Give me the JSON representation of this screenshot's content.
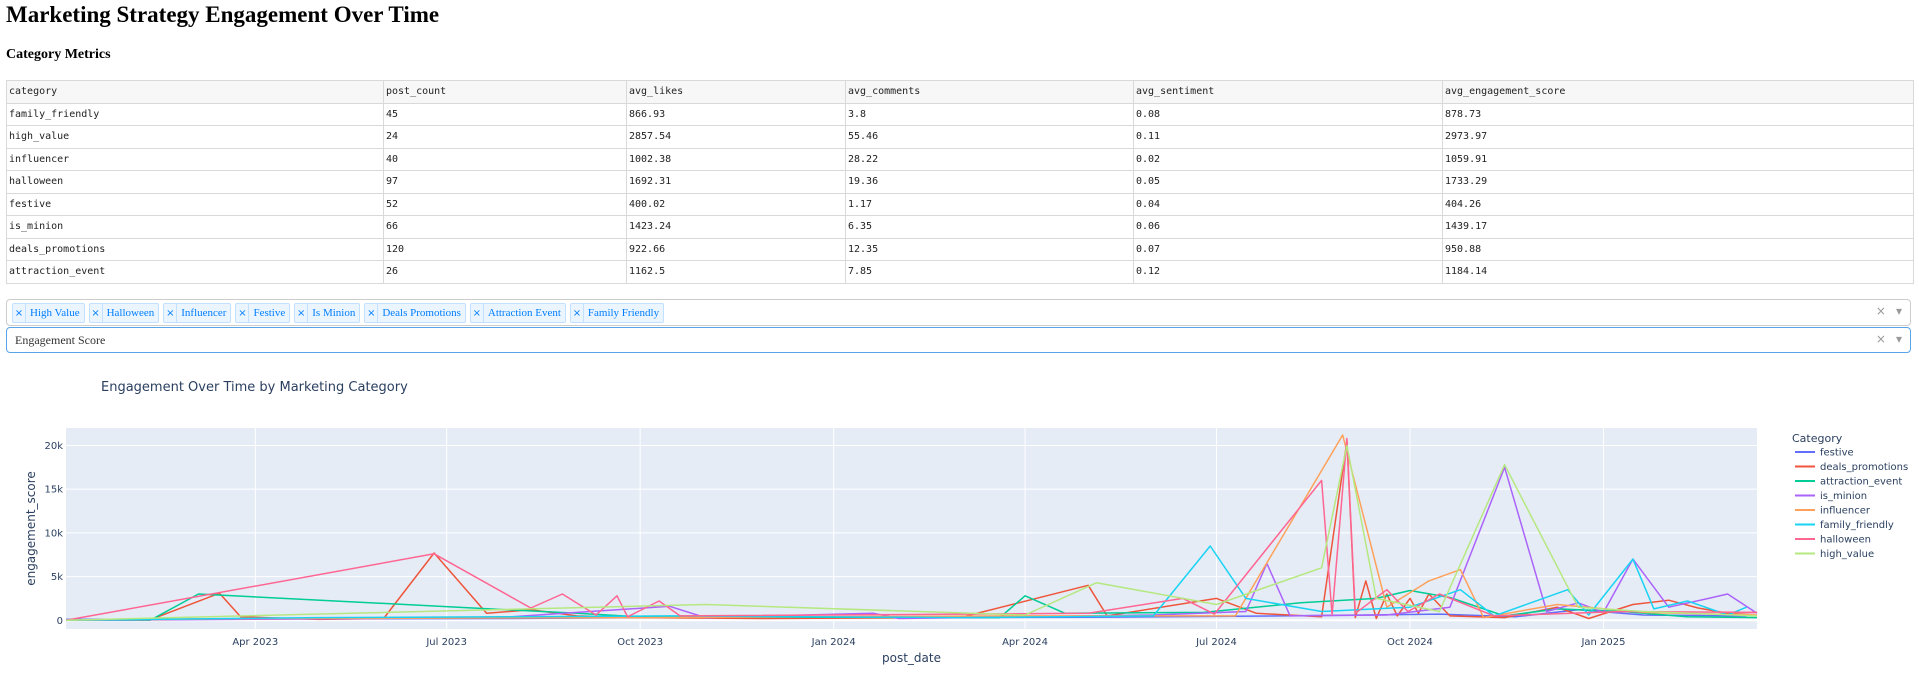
{
  "page": {
    "title": "Marketing Strategy Engagement Over Time",
    "section_title": "Category Metrics"
  },
  "table": {
    "columns": [
      "category",
      "post_count",
      "avg_likes",
      "avg_comments",
      "avg_sentiment",
      "avg_engagement_score"
    ],
    "rows": [
      [
        "family_friendly",
        "45",
        "866.93",
        "3.8",
        "0.08",
        "878.73"
      ],
      [
        "high_value",
        "24",
        "2857.54",
        "55.46",
        "0.11",
        "2973.97"
      ],
      [
        "influencer",
        "40",
        "1002.38",
        "28.22",
        "0.02",
        "1059.91"
      ],
      [
        "halloween",
        "97",
        "1692.31",
        "19.36",
        "0.05",
        "1733.29"
      ],
      [
        "festive",
        "52",
        "400.02",
        "1.17",
        "0.04",
        "404.26"
      ],
      [
        "is_minion",
        "66",
        "1423.24",
        "6.35",
        "0.06",
        "1439.17"
      ],
      [
        "deals_promotions",
        "120",
        "922.66",
        "12.35",
        "0.07",
        "950.88"
      ],
      [
        "attraction_event",
        "26",
        "1162.5",
        "7.85",
        "0.12",
        "1184.14"
      ]
    ]
  },
  "filters": {
    "categories_selected": [
      "High Value",
      "Halloween",
      "Influencer",
      "Festive",
      "Is Minion",
      "Deals Promotions",
      "Attraction Event",
      "Family Friendly"
    ],
    "remove_glyph": "×",
    "clear_glyph": "×",
    "arrow_glyph": "▾",
    "metric_selected": "Engagement Score"
  },
  "chart_data": {
    "type": "line",
    "title": "Engagement Over Time by Marketing Category",
    "xlabel": "post_date",
    "ylabel": "engagement_score",
    "xlim": [
      "2023-01-01",
      "2025-03-15"
    ],
    "ylim": [
      -1000,
      22000
    ],
    "x_ticks": [
      {
        "date": "2023-04-01",
        "label": "Apr 2023"
      },
      {
        "date": "2023-07-01",
        "label": "Jul 2023"
      },
      {
        "date": "2023-10-01",
        "label": "Oct 2023"
      },
      {
        "date": "2024-01-01",
        "label": "Jan 2024"
      },
      {
        "date": "2024-04-01",
        "label": "Apr 2024"
      },
      {
        "date": "2024-07-01",
        "label": "Jul 2024"
      },
      {
        "date": "2024-10-01",
        "label": "Oct 2024"
      },
      {
        "date": "2025-01-01",
        "label": "Jan 2025"
      }
    ],
    "y_ticks": [
      {
        "value": 0,
        "label": "0"
      },
      {
        "value": 5000,
        "label": "5k"
      },
      {
        "value": 10000,
        "label": "10k"
      },
      {
        "value": 15000,
        "label": "15k"
      },
      {
        "value": 20000,
        "label": "20k"
      }
    ],
    "grid": true,
    "legend_title": "Category",
    "legend_position": "right",
    "plot_background": "#e5ecf6",
    "series": [
      {
        "name": "festive",
        "color": "#636efa",
        "points": [
          [
            "2023-01-01",
            100
          ],
          [
            "2023-04-15",
            150
          ],
          [
            "2023-08-01",
            200
          ],
          [
            "2023-11-20",
            400
          ],
          [
            "2024-02-10",
            300
          ],
          [
            "2024-05-01",
            350
          ],
          [
            "2024-08-01",
            500
          ],
          [
            "2024-10-15",
            700
          ],
          [
            "2024-11-20",
            400
          ],
          [
            "2024-12-20",
            1200
          ],
          [
            "2025-01-20",
            600
          ],
          [
            "2025-03-10",
            500
          ]
        ]
      },
      {
        "name": "deals_promotions",
        "color": "#ef553b",
        "points": [
          [
            "2023-01-01",
            0
          ],
          [
            "2023-02-10",
            50
          ],
          [
            "2023-03-15",
            3100
          ],
          [
            "2023-03-25",
            400
          ],
          [
            "2023-05-01",
            100
          ],
          [
            "2023-06-01",
            200
          ],
          [
            "2023-06-25",
            7700
          ],
          [
            "2023-07-20",
            800
          ],
          [
            "2023-08-10",
            1200
          ],
          [
            "2023-09-01",
            500
          ],
          [
            "2023-10-01",
            300
          ],
          [
            "2023-12-01",
            200
          ],
          [
            "2024-03-01",
            300
          ],
          [
            "2024-05-01",
            4000
          ],
          [
            "2024-05-10",
            500
          ],
          [
            "2024-07-01",
            2500
          ],
          [
            "2024-07-20",
            800
          ],
          [
            "2024-08-20",
            400
          ],
          [
            "2024-09-01",
            20500
          ],
          [
            "2024-09-05",
            300
          ],
          [
            "2024-09-10",
            4500
          ],
          [
            "2024-09-15",
            200
          ],
          [
            "2024-09-20",
            3000
          ],
          [
            "2024-09-25",
            500
          ],
          [
            "2024-10-01",
            2500
          ],
          [
            "2024-10-05",
            800
          ],
          [
            "2024-10-10",
            3000
          ],
          [
            "2024-10-20",
            500
          ],
          [
            "2024-11-15",
            300
          ],
          [
            "2024-12-10",
            1500
          ],
          [
            "2024-12-25",
            200
          ],
          [
            "2025-01-15",
            1800
          ],
          [
            "2025-02-01",
            2300
          ],
          [
            "2025-02-15",
            1400
          ],
          [
            "2025-03-01",
            800
          ],
          [
            "2025-03-15",
            900
          ]
        ]
      },
      {
        "name": "attraction_event",
        "color": "#00cc96",
        "points": [
          [
            "2023-01-01",
            0
          ],
          [
            "2023-02-10",
            0
          ],
          [
            "2023-03-05",
            3000
          ],
          [
            "2023-09-01",
            800
          ],
          [
            "2023-10-01",
            400
          ],
          [
            "2024-03-20",
            300
          ],
          [
            "2024-04-01",
            2800
          ],
          [
            "2024-04-20",
            800
          ],
          [
            "2024-06-25",
            900
          ],
          [
            "2024-08-10",
            2000
          ],
          [
            "2024-09-15",
            2500
          ],
          [
            "2024-10-01",
            3400
          ],
          [
            "2024-10-20",
            2600
          ],
          [
            "2024-11-15",
            500
          ],
          [
            "2024-12-10",
            1300
          ],
          [
            "2025-01-10",
            1000
          ],
          [
            "2025-02-10",
            400
          ],
          [
            "2025-03-15",
            300
          ]
        ]
      },
      {
        "name": "is_minion",
        "color": "#ab63fa",
        "points": [
          [
            "2023-01-01",
            0
          ],
          [
            "2023-06-01",
            200
          ],
          [
            "2023-08-01",
            400
          ],
          [
            "2023-09-01",
            900
          ],
          [
            "2023-10-15",
            1600
          ],
          [
            "2023-11-01",
            300
          ],
          [
            "2024-01-20",
            800
          ],
          [
            "2024-02-01",
            200
          ],
          [
            "2024-04-01",
            400
          ],
          [
            "2024-06-01",
            600
          ],
          [
            "2024-07-15",
            1000
          ],
          [
            "2024-07-25",
            6500
          ],
          [
            "2024-08-05",
            500
          ],
          [
            "2024-09-20",
            600
          ],
          [
            "2024-10-20",
            1500
          ],
          [
            "2024-11-15",
            17500
          ],
          [
            "2024-12-05",
            1000
          ],
          [
            "2024-12-20",
            2000
          ],
          [
            "2025-01-01",
            900
          ],
          [
            "2025-01-15",
            7000
          ],
          [
            "2025-02-01",
            1500
          ],
          [
            "2025-02-20",
            2500
          ],
          [
            "2025-03-01",
            3000
          ],
          [
            "2025-03-15",
            800
          ]
        ]
      },
      {
        "name": "influencer",
        "color": "#ffa15a",
        "points": [
          [
            "2023-01-01",
            0
          ],
          [
            "2023-04-01",
            200
          ],
          [
            "2023-10-01",
            300
          ],
          [
            "2024-04-01",
            500
          ],
          [
            "2024-07-10",
            500
          ],
          [
            "2024-08-30",
            21200
          ],
          [
            "2024-09-20",
            1500
          ],
          [
            "2024-10-10",
            4500
          ],
          [
            "2024-10-25",
            5800
          ],
          [
            "2024-11-05",
            300
          ],
          [
            "2024-12-10",
            1800
          ],
          [
            "2025-01-20",
            900
          ],
          [
            "2025-03-15",
            600
          ]
        ]
      },
      {
        "name": "family_friendly",
        "color": "#19d3f3",
        "points": [
          [
            "2023-01-01",
            0
          ],
          [
            "2023-05-01",
            300
          ],
          [
            "2023-08-01",
            400
          ],
          [
            "2023-10-15",
            500
          ],
          [
            "2024-03-01",
            300
          ],
          [
            "2024-06-01",
            500
          ],
          [
            "2024-06-28",
            8500
          ],
          [
            "2024-07-15",
            2500
          ],
          [
            "2024-08-20",
            1000
          ],
          [
            "2024-10-01",
            1500
          ],
          [
            "2024-10-25",
            3500
          ],
          [
            "2024-11-10",
            500
          ],
          [
            "2024-12-15",
            3500
          ],
          [
            "2024-12-25",
            600
          ],
          [
            "2025-01-15",
            7000
          ],
          [
            "2025-01-25",
            1300
          ],
          [
            "2025-02-10",
            2200
          ],
          [
            "2025-03-01",
            600
          ],
          [
            "2025-03-10",
            1500
          ]
        ]
      },
      {
        "name": "halloween",
        "color": "#ff6692",
        "points": [
          [
            "2023-01-01",
            0
          ],
          [
            "2023-06-25",
            7600
          ],
          [
            "2023-08-10",
            1400
          ],
          [
            "2023-08-25",
            3000
          ],
          [
            "2023-09-10",
            600
          ],
          [
            "2023-09-20",
            2800
          ],
          [
            "2023-09-25",
            400
          ],
          [
            "2023-10-10",
            2200
          ],
          [
            "2023-10-20",
            500
          ],
          [
            "2024-05-01",
            800
          ],
          [
            "2024-06-15",
            2500
          ],
          [
            "2024-06-30",
            700
          ],
          [
            "2024-08-20",
            16000
          ],
          [
            "2024-08-25",
            600
          ],
          [
            "2024-09-01",
            20800
          ],
          [
            "2024-09-05",
            800
          ],
          [
            "2024-09-20",
            3500
          ],
          [
            "2024-09-30",
            1000
          ],
          [
            "2024-10-15",
            3000
          ],
          [
            "2024-11-10",
            500
          ],
          [
            "2025-01-10",
            1000
          ],
          [
            "2025-03-15",
            900
          ]
        ]
      },
      {
        "name": "high_value",
        "color": "#b6e880",
        "points": [
          [
            "2023-01-01",
            0
          ],
          [
            "2023-11-01",
            1800
          ],
          [
            "2024-04-01",
            600
          ],
          [
            "2024-05-05",
            4300
          ],
          [
            "2024-07-01",
            1800
          ],
          [
            "2024-08-20",
            6000
          ],
          [
            "2024-09-01",
            20000
          ],
          [
            "2024-09-15",
            2500
          ],
          [
            "2024-10-15",
            1000
          ],
          [
            "2024-11-15",
            17800
          ],
          [
            "2024-12-20",
            1500
          ],
          [
            "2025-01-20",
            1000
          ],
          [
            "2025-03-15",
            500
          ]
        ]
      }
    ]
  }
}
